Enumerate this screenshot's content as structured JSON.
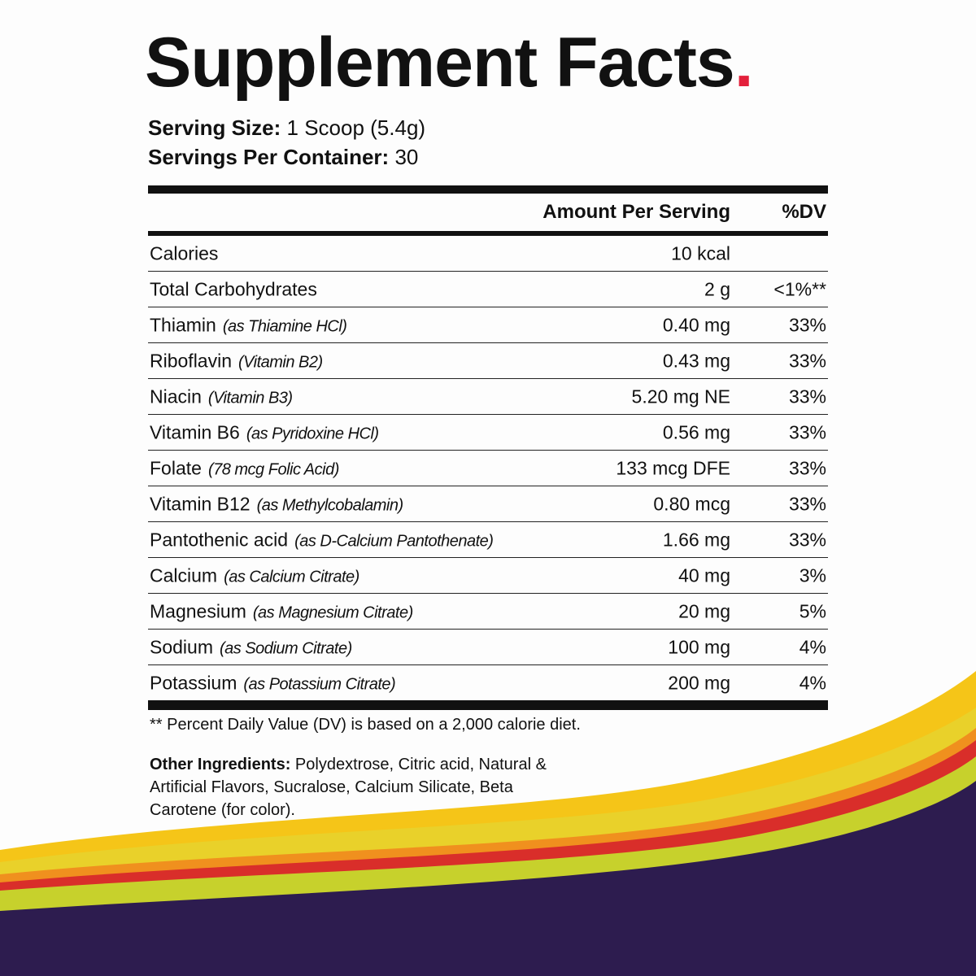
{
  "title": "Supplement Facts",
  "title_punctuation": ".",
  "serving": [
    {
      "label": "Serving Size:",
      "value": "1 Scoop (5.4g)"
    },
    {
      "label": "Servings Per Container:",
      "value": "30"
    }
  ],
  "table": {
    "header": [
      "Amount Per Serving",
      "%DV"
    ],
    "rows": [
      {
        "name": "Calories",
        "amount": "10 kcal"
      },
      {
        "name": "Total Carbohydrates",
        "amount": "2 g",
        "dv": "<1%**"
      },
      {
        "name": "Thiamin",
        "note": "(as Thiamine HCl)",
        "amount": "0.40 mg",
        "dv": "33%"
      },
      {
        "name": "Riboflavin",
        "note": "(Vitamin B2)",
        "amount": "0.43 mg",
        "dv": "33%"
      },
      {
        "name": "Niacin",
        "note": "(Vitamin B3)",
        "amount": "5.20 mg NE",
        "dv": "33%"
      },
      {
        "name": "Vitamin B6",
        "note": "(as Pyridoxine HCl)",
        "amount": "0.56 mg",
        "dv": "33%"
      },
      {
        "name": "Folate",
        "note": "(78 mcg Folic Acid)",
        "amount": "133 mcg DFE",
        "dv": "33%"
      },
      {
        "name": "Vitamin B12",
        "note": "(as Methylcobalamin)",
        "amount": "0.80 mcg",
        "dv": "33%"
      },
      {
        "name": "Pantothenic acid",
        "note": "(as D-Calcium Pantothenate)",
        "amount": "1.66 mg",
        "dv": "33%"
      },
      {
        "name": "Calcium",
        "note": "(as Calcium Citrate)",
        "amount": "40 mg",
        "dv": "3%"
      },
      {
        "name": "Magnesium",
        "note": "(as Magnesium Citrate)",
        "amount": "20 mg",
        "dv": "5%"
      },
      {
        "name": "Sodium",
        "note": "(as Sodium Citrate)",
        "amount": "100 mg",
        "dv": "4%"
      },
      {
        "name": "Potassium",
        "note": "(as Potassium Citrate)",
        "amount": "200 mg",
        "dv": "4%"
      }
    ]
  },
  "footnote": "** Percent Daily Value (DV) is based on a 2,000 calorie diet.",
  "other_ingredients": {
    "label": "Other Ingredients:",
    "lines": [
      "Polydextrose, Citric acid, Natural &",
      "Artificial Flavors, Sucralose, Calcium Silicate, Beta",
      "Carotene (for color)."
    ]
  }
}
